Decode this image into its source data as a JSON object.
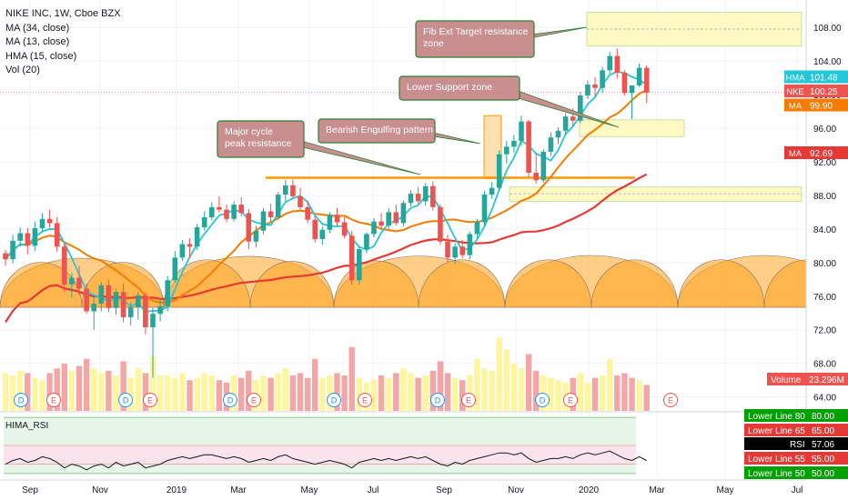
{
  "legend": {
    "title": "NIKE INC, 1W, Cboe BZX",
    "studies": [
      "MA (34, close)",
      "MA (13, close)",
      "HMA (15, close)",
      "Vol (20)"
    ]
  },
  "rsi_pane": {
    "title": "HIMA_RSI"
  },
  "colors": {
    "candle_up": "#26a69a",
    "candle_down": "#ef5350",
    "ma34": "#e53935",
    "ma13": "#f57c00",
    "hma": "#26c6da",
    "cycle_arc": "#ffa726",
    "vol_up": "#fff59d",
    "vol_down": "#f4a6a6",
    "zone": "#fff9c4",
    "annotation_bg": "#c98f8f",
    "annotation_border": "#2e7d32",
    "resistance_line": "#ff9800"
  },
  "chart_data": {
    "type": "candlestick",
    "y_axis_ticks": [
      "108.00",
      "104.00",
      "100.00",
      "96.00",
      "92.00",
      "88.00",
      "84.00",
      "80.00",
      "76.00",
      "72.00",
      "68.00",
      "64.00"
    ],
    "y_range": [
      62.5,
      111.0
    ],
    "x_axis_ticks": [
      "Sep",
      "Nov",
      "2019",
      "Mar",
      "May",
      "Jul",
      "Sep",
      "Nov",
      "2020",
      "Mar",
      "May",
      "Jul"
    ],
    "candles": [
      [
        81.1,
        81.5,
        79.6,
        80.4
      ],
      [
        80.4,
        83.3,
        79.9,
        82.6
      ],
      [
        82.6,
        84.2,
        81.9,
        83.5
      ],
      [
        83.5,
        84.1,
        81.0,
        82.0
      ],
      [
        82.0,
        84.9,
        81.4,
        84.1
      ],
      [
        84.1,
        85.9,
        83.6,
        85.2
      ],
      [
        85.2,
        86.3,
        84.2,
        84.7
      ],
      [
        84.7,
        85.4,
        81.3,
        81.9
      ],
      [
        81.9,
        82.2,
        76.5,
        77.4
      ],
      [
        77.4,
        78.8,
        75.8,
        78.2
      ],
      [
        78.2,
        79.6,
        76.1,
        76.9
      ],
      [
        76.9,
        77.5,
        73.9,
        74.2
      ],
      [
        74.2,
        75.9,
        72.0,
        75.1
      ],
      [
        75.1,
        77.7,
        74.2,
        77.3
      ],
      [
        77.3,
        78.0,
        74.1,
        74.6
      ],
      [
        74.6,
        76.9,
        73.8,
        76.5
      ],
      [
        76.5,
        77.5,
        72.9,
        73.5
      ],
      [
        73.5,
        75.2,
        72.5,
        74.7
      ],
      [
        74.7,
        76.5,
        73.2,
        76.1
      ],
      [
        76.1,
        76.5,
        71.5,
        72.3
      ],
      [
        72.3,
        74.6,
        66.3,
        73.9
      ],
      [
        73.9,
        75.6,
        73.0,
        74.8
      ],
      [
        74.8,
        78.4,
        74.2,
        77.9
      ],
      [
        77.9,
        81.4,
        77.6,
        80.6
      ],
      [
        80.6,
        82.7,
        80.2,
        82.2
      ],
      [
        82.2,
        82.9,
        80.6,
        81.9
      ],
      [
        81.9,
        84.6,
        81.5,
        84.2
      ],
      [
        84.2,
        86.1,
        83.8,
        85.4
      ],
      [
        85.4,
        87.2,
        85.0,
        86.6
      ],
      [
        86.6,
        87.9,
        86.0,
        86.3
      ],
      [
        86.3,
        86.9,
        84.8,
        85.2
      ],
      [
        85.2,
        87.3,
        84.9,
        86.9
      ],
      [
        86.9,
        87.8,
        85.5,
        85.9
      ],
      [
        85.9,
        86.4,
        81.6,
        82.5
      ],
      [
        82.5,
        84.4,
        81.8,
        83.8
      ],
      [
        83.8,
        86.5,
        83.4,
        86.1
      ],
      [
        86.1,
        87.0,
        84.9,
        85.4
      ],
      [
        85.4,
        88.4,
        85.1,
        88.1
      ],
      [
        88.1,
        89.8,
        87.3,
        89.2
      ],
      [
        89.2,
        89.9,
        87.6,
        87.9
      ],
      [
        87.9,
        88.9,
        86.2,
        86.6
      ],
      [
        86.6,
        87.4,
        84.7,
        85.1
      ],
      [
        85.1,
        85.5,
        82.4,
        82.8
      ],
      [
        82.8,
        84.3,
        82.1,
        83.9
      ],
      [
        83.9,
        86.0,
        83.5,
        85.7
      ],
      [
        85.7,
        86.5,
        84.4,
        84.8
      ],
      [
        84.8,
        85.4,
        82.9,
        83.2
      ],
      [
        83.2,
        83.8,
        77.4,
        77.9
      ],
      [
        77.9,
        81.9,
        77.4,
        81.6
      ],
      [
        81.6,
        83.6,
        81.1,
        83.4
      ],
      [
        83.4,
        85.3,
        83.0,
        84.9
      ],
      [
        84.9,
        85.9,
        83.9,
        84.4
      ],
      [
        84.4,
        86.5,
        84.0,
        86.0
      ],
      [
        86.0,
        86.9,
        84.4,
        84.7
      ],
      [
        84.7,
        87.4,
        84.3,
        87.1
      ],
      [
        87.1,
        88.6,
        86.7,
        88.2
      ],
      [
        88.2,
        89.0,
        87.0,
        87.3
      ],
      [
        87.3,
        89.5,
        86.8,
        89.1
      ],
      [
        89.1,
        89.7,
        86.2,
        86.6
      ],
      [
        86.6,
        86.9,
        82.1,
        82.5
      ],
      [
        82.5,
        83.3,
        80.0,
        80.6
      ],
      [
        80.6,
        82.3,
        79.8,
        81.9
      ],
      [
        81.9,
        82.7,
        80.5,
        80.9
      ],
      [
        80.9,
        83.7,
        80.4,
        83.4
      ],
      [
        83.4,
        85.2,
        82.9,
        84.8
      ],
      [
        84.8,
        88.5,
        84.3,
        88.1
      ],
      [
        88.1,
        89.6,
        87.6,
        88.9
      ],
      [
        88.9,
        93.4,
        88.6,
        92.9
      ],
      [
        92.9,
        94.5,
        91.8,
        93.8
      ],
      [
        93.8,
        95.2,
        93.1,
        94.5
      ],
      [
        94.5,
        97.5,
        93.9,
        96.8
      ],
      [
        96.8,
        97.0,
        90.2,
        90.7
      ],
      [
        90.7,
        93.1,
        89.4,
        89.8
      ],
      [
        89.8,
        93.5,
        89.5,
        93.2
      ],
      [
        93.2,
        95.5,
        92.7,
        94.9
      ],
      [
        94.9,
        96.1,
        94.1,
        95.7
      ],
      [
        95.7,
        97.8,
        95.2,
        97.4
      ],
      [
        97.4,
        98.4,
        96.3,
        96.9
      ],
      [
        96.9,
        100.3,
        96.6,
        99.9
      ],
      [
        99.9,
        101.7,
        99.5,
        101.2
      ],
      [
        101.2,
        102.1,
        99.8,
        100.8
      ],
      [
        100.8,
        103.3,
        100.2,
        102.9
      ],
      [
        102.9,
        105.1,
        102.5,
        104.6
      ],
      [
        104.6,
        105.5,
        101.9,
        102.6
      ],
      [
        102.6,
        102.9,
        99.9,
        100.2
      ],
      [
        100.2,
        101.1,
        97.1,
        101.1
      ],
      [
        101.1,
        103.7,
        100.9,
        103.2
      ],
      [
        103.2,
        103.5,
        99.0,
        100.25
      ]
    ],
    "volume_up_flags": [
      1,
      1,
      1,
      0,
      1,
      1,
      0,
      0,
      0,
      1,
      0,
      0,
      1,
      1,
      0,
      1,
      0,
      1,
      1,
      0,
      1,
      1,
      1,
      1,
      1,
      0,
      1,
      1,
      1,
      0,
      0,
      1,
      0,
      0,
      1,
      1,
      0,
      1,
      1,
      0,
      0,
      0,
      0,
      1,
      1,
      0,
      0,
      0,
      1,
      1,
      1,
      0,
      1,
      0,
      1,
      1,
      0,
      1,
      0,
      0,
      0,
      1,
      0,
      1,
      1,
      1,
      1,
      1,
      1,
      1,
      1,
      0,
      0,
      1,
      1,
      1,
      1,
      0,
      1,
      1,
      0,
      1,
      1,
      0,
      0,
      0,
      1,
      0
    ],
    "volume_values": [
      16,
      15,
      17,
      16,
      14,
      13,
      16,
      18,
      20,
      17,
      19,
      22,
      18,
      16,
      17,
      15,
      21,
      14,
      18,
      16,
      23,
      15,
      15,
      14,
      16,
      13,
      14,
      16,
      15,
      13,
      12,
      15,
      14,
      17,
      13,
      15,
      14,
      16,
      18,
      15,
      16,
      14,
      22,
      14,
      15,
      16,
      15,
      27,
      14,
      12,
      13,
      15,
      14,
      16,
      18,
      16,
      14,
      15,
      17,
      21,
      16,
      14,
      13,
      15,
      22,
      18,
      17,
      31,
      26,
      20,
      18,
      24,
      17,
      15,
      14,
      13,
      12,
      14,
      16,
      12,
      14,
      15,
      22,
      15,
      16,
      14,
      13,
      11
    ],
    "price_scale_labels": [
      {
        "name": "HMA",
        "value": "101.48"
      },
      {
        "name": "NKE",
        "value": "100.25"
      },
      {
        "name": "MA",
        "value": "99.90"
      },
      {
        "name": "MA",
        "value": "92.69"
      },
      {
        "name": "Volume",
        "value": "23.296M"
      }
    ],
    "rsi_labels": [
      {
        "name": "Lower Line 80",
        "value": "80.00"
      },
      {
        "name": "Lower Line 65",
        "value": "65.00"
      },
      {
        "name": "RSI",
        "value": "57.06"
      },
      {
        "name": "Lower Line 55",
        "value": "55.00"
      },
      {
        "name": "Lower Line 50",
        "value": "50.00"
      }
    ],
    "rsi_values": [
      55,
      57,
      58,
      56,
      57,
      59,
      58,
      56,
      53,
      55,
      54,
      52,
      54,
      55,
      53,
      56,
      54,
      55,
      56,
      53,
      54,
      55,
      57,
      58,
      59,
      58,
      59,
      60,
      60,
      59,
      58,
      59,
      58,
      56,
      57,
      58,
      57,
      59,
      60,
      58,
      57,
      56,
      55,
      56,
      57,
      56,
      55,
      53,
      56,
      57,
      58,
      57,
      58,
      57,
      58,
      59,
      58,
      59,
      57,
      55,
      54,
      56,
      55,
      57,
      58,
      59,
      60,
      61,
      61,
      60,
      61,
      58,
      56,
      57,
      58,
      58,
      59,
      58,
      60,
      61,
      60,
      61,
      62,
      60,
      58,
      57,
      59,
      57
    ],
    "annotations": [
      "Fib Ext Target resistance zone",
      "Lower Support zone",
      "Major cycle peak resistance",
      "Bearish Engulfing pattern"
    ],
    "events": [
      "D",
      "E",
      "D",
      "E",
      "D",
      "E",
      "D",
      "E",
      "D",
      "E",
      "D",
      "E",
      "E"
    ]
  }
}
